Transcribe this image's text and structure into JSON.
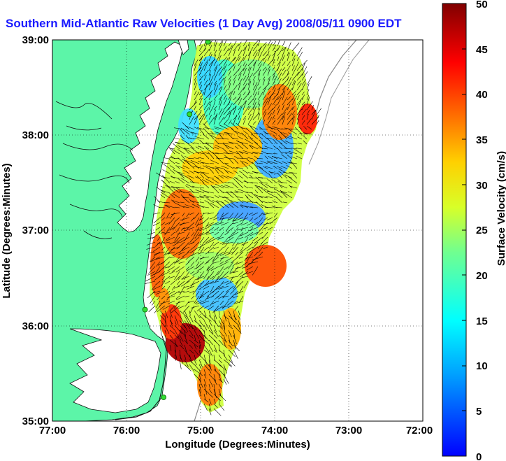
{
  "title": "Southern Mid-Atlantic Raw Velocities (1 Day Avg) 2008/05/11 0900 EDT",
  "map": {
    "xlabel": "Longitude (Degrees:Minutes)",
    "ylabel": "Latitude (Degrees:Minutes)",
    "xticks": [
      "77:00",
      "76:00",
      "75:00",
      "74:00",
      "73:00",
      "72:00"
    ],
    "yticks": [
      "39:00",
      "38:00",
      "37:00",
      "36:00",
      "35:00"
    ],
    "xlim": [
      -77,
      -72
    ],
    "ylim": [
      35,
      39
    ],
    "grid": "dotted",
    "land_color": "#5cf5a8",
    "water_color": "#ffffff",
    "station_color": "#33dd33"
  },
  "colorbar": {
    "label": "Surface Velocity (cm/s)",
    "ticks": [
      "50",
      "45",
      "40",
      "35",
      "30",
      "25",
      "20",
      "15",
      "10",
      "5",
      "0"
    ],
    "range": [
      0,
      50
    ],
    "colormap": "jet"
  },
  "stations": [
    {
      "lon": -74.9,
      "lat": 38.98
    },
    {
      "lon": -75.15,
      "lat": 38.22
    },
    {
      "lon": -75.75,
      "lat": 36.17
    },
    {
      "lon": -75.5,
      "lat": 35.25
    }
  ]
}
